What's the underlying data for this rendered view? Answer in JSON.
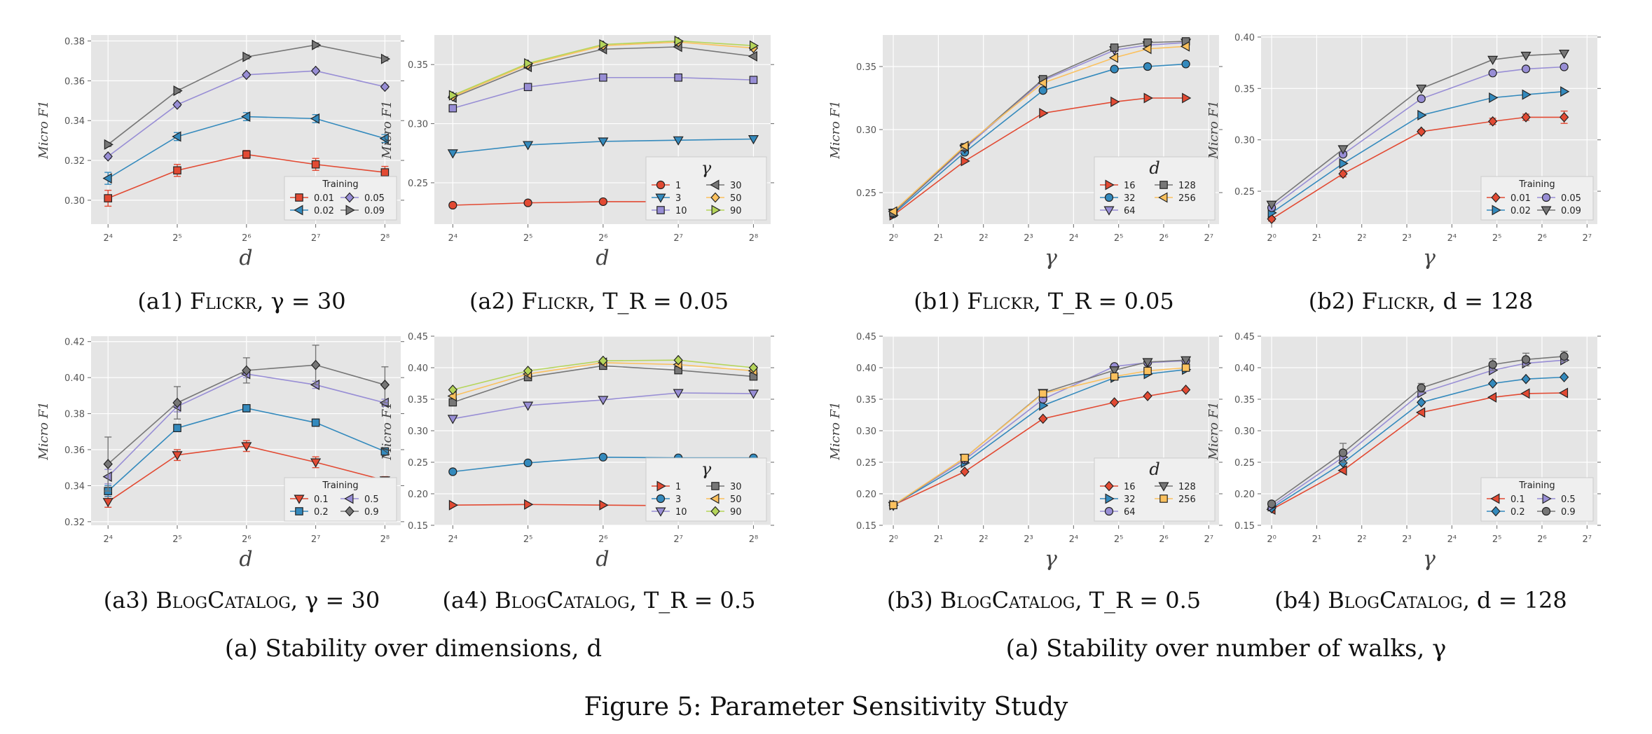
{
  "figure_caption": "Figure 5: Parameter Sensitivity Study",
  "group_captions": [
    "(a) Stability over dimensions, d",
    "(a) Stability over number of walks, γ"
  ],
  "colors": {
    "panel_bg": "#e5e5e5",
    "grid": "#ffffff",
    "series": [
      "#e24a33",
      "#348abd",
      "#988ed5",
      "#777777",
      "#fbc15e",
      "#b5d55a"
    ]
  },
  "chart_data": [
    {
      "id": "a1",
      "type": "line",
      "caption": {
        "label": "(a1)",
        "dataset": "Flickr",
        "param": "γ = 30"
      },
      "xlabel": "d",
      "ylabel": "Micro F1",
      "xscale": "log2",
      "xlim": [
        13.5,
        300
      ],
      "ylim": [
        0.288,
        0.383
      ],
      "xticks": [
        16,
        32,
        64,
        128,
        256
      ],
      "xtick_labels": [
        "2⁴",
        "2⁵",
        "2⁶",
        "2⁷",
        "2⁸"
      ],
      "yticks": [
        0.3,
        0.32,
        0.34,
        0.36,
        0.38
      ],
      "ytick_labels": [
        "0.30",
        "0.32",
        "0.34",
        "0.36",
        "0.38"
      ],
      "legend": {
        "title": "Training",
        "position": "bottom-right",
        "columns": 2
      },
      "x": [
        16,
        32,
        64,
        128,
        256
      ],
      "series": [
        {
          "name": "0.01",
          "marker": "s",
          "color": "#e24a33",
          "values": [
            0.301,
            0.315,
            0.323,
            0.318,
            0.314
          ],
          "err": [
            0.004,
            0.003,
            0.002,
            0.003,
            0.003
          ]
        },
        {
          "name": "0.02",
          "marker": "<",
          "color": "#348abd",
          "values": [
            0.311,
            0.332,
            0.342,
            0.341,
            0.331
          ],
          "err": [
            0.003,
            0.002,
            0.002,
            0.002,
            0.002
          ]
        },
        {
          "name": "0.05",
          "marker": "D",
          "color": "#988ed5",
          "values": [
            0.322,
            0.348,
            0.363,
            0.365,
            0.357
          ],
          "err": [
            0.001,
            0.001,
            0.001,
            0.001,
            0.001
          ]
        },
        {
          "name": "0.09",
          "marker": ">",
          "color": "#777777",
          "values": [
            0.328,
            0.355,
            0.372,
            0.378,
            0.371
          ],
          "err": [
            0.001,
            0.001,
            0.001,
            0.001,
            0.001
          ]
        }
      ]
    },
    {
      "id": "a2",
      "type": "line",
      "caption": {
        "label": "(a2)",
        "dataset": "Flickr",
        "param": "T_R = 0.05"
      },
      "xlabel": "d",
      "ylabel": "Micro F1",
      "xscale": "log2",
      "xlim": [
        13.5,
        300
      ],
      "ylim": [
        0.215,
        0.375
      ],
      "xticks": [
        16,
        32,
        64,
        128,
        256
      ],
      "xtick_labels": [
        "2⁴",
        "2⁵",
        "2⁶",
        "2⁷",
        "2⁸"
      ],
      "yticks": [
        0.25,
        0.3,
        0.35
      ],
      "ytick_labels": [
        "0.25",
        "0.30",
        "0.35"
      ],
      "legend": {
        "title": "γ",
        "position": "bottom-right",
        "columns": 2
      },
      "x": [
        16,
        32,
        64,
        128,
        256
      ],
      "series": [
        {
          "name": "1",
          "marker": "o",
          "color": "#e24a33",
          "values": [
            0.231,
            0.233,
            0.234,
            0.234,
            0.235
          ]
        },
        {
          "name": "3",
          "marker": "v",
          "color": "#348abd",
          "values": [
            0.275,
            0.282,
            0.285,
            0.286,
            0.287
          ]
        },
        {
          "name": "10",
          "marker": "s",
          "color": "#988ed5",
          "values": [
            0.313,
            0.331,
            0.339,
            0.339,
            0.337
          ]
        },
        {
          "name": "30",
          "marker": "<",
          "color": "#777777",
          "values": [
            0.322,
            0.348,
            0.363,
            0.365,
            0.357
          ]
        },
        {
          "name": "50",
          "marker": "D",
          "color": "#fbc15e",
          "values": [
            0.323,
            0.35,
            0.366,
            0.369,
            0.364
          ]
        },
        {
          "name": "90",
          "marker": ">",
          "color": "#b5d55a",
          "values": [
            0.324,
            0.351,
            0.367,
            0.37,
            0.366
          ]
        }
      ]
    },
    {
      "id": "b1",
      "type": "line",
      "caption": {
        "label": "(b1)",
        "dataset": "Flickr",
        "param": "T_R = 0.05"
      },
      "xlabel": "γ",
      "ylabel": "Micro F1",
      "xscale": "log2",
      "xlim": [
        0.85,
        150
      ],
      "ylim": [
        0.225,
        0.375
      ],
      "xticks": [
        1,
        2,
        4,
        8,
        16,
        32,
        64,
        128
      ],
      "xtick_labels": [
        "2⁰",
        "2¹",
        "2²",
        "2³",
        "2⁴",
        "2⁵",
        "2⁶",
        "2⁷"
      ],
      "yticks": [
        0.25,
        0.3,
        0.35
      ],
      "ytick_labels": [
        "0.25",
        "0.30",
        "0.35"
      ],
      "legend": {
        "title": "d",
        "position": "bottom-right",
        "columns": 2
      },
      "x": [
        1,
        3,
        10,
        30,
        50,
        90
      ],
      "series": [
        {
          "name": "16",
          "marker": ">",
          "color": "#e24a33",
          "values": [
            0.232,
            0.275,
            0.313,
            0.322,
            0.325,
            0.325
          ]
        },
        {
          "name": "32",
          "marker": "o",
          "color": "#348abd",
          "values": [
            0.233,
            0.282,
            0.331,
            0.348,
            0.35,
            0.352
          ]
        },
        {
          "name": "64",
          "marker": "v",
          "color": "#988ed5",
          "values": [
            0.234,
            0.285,
            0.339,
            0.363,
            0.367,
            0.369
          ]
        },
        {
          "name": "128",
          "marker": "s",
          "color": "#777777",
          "values": [
            0.234,
            0.286,
            0.34,
            0.365,
            0.369,
            0.37
          ]
        },
        {
          "name": "256",
          "marker": "<",
          "color": "#fbc15e",
          "values": [
            0.235,
            0.287,
            0.337,
            0.357,
            0.364,
            0.366
          ]
        }
      ]
    },
    {
      "id": "b2",
      "type": "line",
      "caption": {
        "label": "(b2)",
        "dataset": "Flickr",
        "param": "d = 128"
      },
      "xlabel": "γ",
      "ylabel": "Micro F1",
      "xscale": "log2",
      "xlim": [
        0.85,
        150
      ],
      "ylim": [
        0.218,
        0.402
      ],
      "xticks": [
        1,
        2,
        4,
        8,
        16,
        32,
        64,
        128
      ],
      "xtick_labels": [
        "2⁰",
        "2¹",
        "2²",
        "2³",
        "2⁴",
        "2⁵",
        "2⁶",
        "2⁷"
      ],
      "yticks": [
        0.25,
        0.3,
        0.35,
        0.4
      ],
      "ytick_labels": [
        "0.25",
        "0.30",
        "0.35",
        "0.40"
      ],
      "legend": {
        "title": "Training",
        "position": "bottom-right",
        "columns": 2
      },
      "x": [
        1,
        3,
        10,
        30,
        50,
        90
      ],
      "series": [
        {
          "name": "0.01",
          "marker": "D",
          "color": "#e24a33",
          "values": [
            0.223,
            0.267,
            0.308,
            0.318,
            0.322,
            0.322
          ],
          "err": [
            0.002,
            0.003,
            0.002,
            0.003,
            0.003,
            0.006
          ]
        },
        {
          "name": "0.02",
          "marker": ">",
          "color": "#348abd",
          "values": [
            0.229,
            0.277,
            0.324,
            0.341,
            0.344,
            0.347
          ]
        },
        {
          "name": "0.05",
          "marker": "o",
          "color": "#988ed5",
          "values": [
            0.234,
            0.286,
            0.34,
            0.365,
            0.369,
            0.371
          ]
        },
        {
          "name": "0.09",
          "marker": "v",
          "color": "#777777",
          "values": [
            0.237,
            0.291,
            0.35,
            0.378,
            0.382,
            0.384
          ]
        }
      ]
    },
    {
      "id": "a3",
      "type": "line",
      "caption": {
        "label": "(a3)",
        "dataset": "BlogCatalog",
        "param": "γ = 30"
      },
      "xlabel": "d",
      "ylabel": "Micro F1",
      "xscale": "log2",
      "xlim": [
        13.5,
        300
      ],
      "ylim": [
        0.318,
        0.423
      ],
      "xticks": [
        16,
        32,
        64,
        128,
        256
      ],
      "xtick_labels": [
        "2⁴",
        "2⁵",
        "2⁶",
        "2⁷",
        "2⁸"
      ],
      "yticks": [
        0.32,
        0.34,
        0.36,
        0.38,
        0.4,
        0.42
      ],
      "ytick_labels": [
        "0.32",
        "0.34",
        "0.36",
        "0.38",
        "0.40",
        "0.42"
      ],
      "legend": {
        "title": "Training",
        "position": "bottom-right",
        "columns": 2
      },
      "x": [
        16,
        32,
        64,
        128,
        256
      ],
      "series": [
        {
          "name": "0.1",
          "marker": "v",
          "color": "#e24a33",
          "values": [
            0.331,
            0.357,
            0.362,
            0.353,
            0.343
          ],
          "err": [
            0.003,
            0.003,
            0.003,
            0.003,
            0.002
          ]
        },
        {
          "name": "0.2",
          "marker": "s",
          "color": "#348abd",
          "values": [
            0.337,
            0.372,
            0.383,
            0.375,
            0.359
          ],
          "err": [
            0.003,
            0.002,
            0.002,
            0.002,
            0.002
          ]
        },
        {
          "name": "0.5",
          "marker": "<",
          "color": "#988ed5",
          "values": [
            0.345,
            0.384,
            0.402,
            0.396,
            0.386
          ],
          "err": [
            0.004,
            0.003,
            0.002,
            0.002,
            0.002
          ]
        },
        {
          "name": "0.9",
          "marker": "D",
          "color": "#777777",
          "values": [
            0.352,
            0.386,
            0.404,
            0.407,
            0.396
          ],
          "err": [
            0.015,
            0.009,
            0.007,
            0.011,
            0.01
          ]
        }
      ]
    },
    {
      "id": "a4",
      "type": "line",
      "caption": {
        "label": "(a4)",
        "dataset": "BlogCatalog",
        "param": "T_R = 0.5"
      },
      "xlabel": "d",
      "ylabel": "Micro F1",
      "xscale": "log2",
      "xlim": [
        13.5,
        300
      ],
      "ylim": [
        0.15,
        0.45
      ],
      "xticks": [
        16,
        32,
        64,
        128,
        256
      ],
      "xtick_labels": [
        "2⁴",
        "2⁵",
        "2⁶",
        "2⁷",
        "2⁸"
      ],
      "yticks": [
        0.15,
        0.2,
        0.25,
        0.3,
        0.35,
        0.4,
        0.45
      ],
      "ytick_labels": [
        "0.15",
        "0.20",
        "0.25",
        "0.30",
        "0.35",
        "0.40",
        "0.45"
      ],
      "legend": {
        "title": "γ",
        "position": "bottom-right",
        "columns": 2
      },
      "x": [
        16,
        32,
        64,
        128,
        256
      ],
      "series": [
        {
          "name": "1",
          "marker": ">",
          "color": "#e24a33",
          "values": [
            0.182,
            0.183,
            0.182,
            0.181,
            0.182
          ]
        },
        {
          "name": "3",
          "marker": "o",
          "color": "#348abd",
          "values": [
            0.235,
            0.249,
            0.258,
            0.257,
            0.257
          ]
        },
        {
          "name": "10",
          "marker": "v",
          "color": "#988ed5",
          "values": [
            0.319,
            0.34,
            0.349,
            0.36,
            0.359
          ]
        },
        {
          "name": "30",
          "marker": "s",
          "color": "#777777",
          "values": [
            0.345,
            0.385,
            0.403,
            0.396,
            0.386
          ]
        },
        {
          "name": "50",
          "marker": "<",
          "color": "#fbc15e",
          "values": [
            0.355,
            0.39,
            0.408,
            0.405,
            0.395
          ]
        },
        {
          "name": "90",
          "marker": "D",
          "color": "#b5d55a",
          "values": [
            0.365,
            0.395,
            0.411,
            0.412,
            0.4
          ]
        }
      ]
    },
    {
      "id": "b3",
      "type": "line",
      "caption": {
        "label": "(b3)",
        "dataset": "BlogCatalog",
        "param": "T_R = 0.5"
      },
      "xlabel": "γ",
      "ylabel": "Micro F1",
      "xscale": "log2",
      "xlim": [
        0.85,
        150
      ],
      "ylim": [
        0.15,
        0.45
      ],
      "xticks": [
        1,
        2,
        4,
        8,
        16,
        32,
        64,
        128
      ],
      "xtick_labels": [
        "2⁰",
        "2¹",
        "2²",
        "2³",
        "2⁴",
        "2⁵",
        "2⁶",
        "2⁷"
      ],
      "yticks": [
        0.15,
        0.2,
        0.25,
        0.3,
        0.35,
        0.4,
        0.45
      ],
      "ytick_labels": [
        "0.15",
        "0.20",
        "0.25",
        "0.30",
        "0.35",
        "0.40",
        "0.45"
      ],
      "legend": {
        "title": "d",
        "position": "bottom-right",
        "columns": 2
      },
      "x": [
        1,
        3,
        10,
        30,
        50,
        90
      ],
      "series": [
        {
          "name": "16",
          "marker": "D",
          "color": "#e24a33",
          "values": [
            0.182,
            0.235,
            0.319,
            0.345,
            0.355,
            0.365
          ]
        },
        {
          "name": "32",
          "marker": ">",
          "color": "#348abd",
          "values": [
            0.182,
            0.249,
            0.34,
            0.384,
            0.39,
            0.397
          ]
        },
        {
          "name": "64",
          "marker": "o",
          "color": "#988ed5",
          "values": [
            0.182,
            0.254,
            0.35,
            0.402,
            0.408,
            0.411
          ]
        },
        {
          "name": "128",
          "marker": "v",
          "color": "#777777",
          "values": [
            0.181,
            0.257,
            0.36,
            0.396,
            0.409,
            0.412
          ]
        },
        {
          "name": "256",
          "marker": "s",
          "color": "#fbc15e",
          "values": [
            0.182,
            0.257,
            0.359,
            0.386,
            0.395,
            0.4
          ]
        }
      ]
    },
    {
      "id": "b4",
      "type": "line",
      "caption": {
        "label": "(b4)",
        "dataset": "BlogCatalog",
        "param": "d = 128"
      },
      "xlabel": "γ",
      "ylabel": "Micro F1",
      "xscale": "log2",
      "xlim": [
        0.85,
        150
      ],
      "ylim": [
        0.15,
        0.45
      ],
      "xticks": [
        1,
        2,
        4,
        8,
        16,
        32,
        64,
        128
      ],
      "xtick_labels": [
        "2⁰",
        "2¹",
        "2²",
        "2³",
        "2⁴",
        "2⁵",
        "2⁶",
        "2⁷"
      ],
      "yticks": [
        0.15,
        0.2,
        0.25,
        0.3,
        0.35,
        0.4,
        0.45
      ],
      "ytick_labels": [
        "0.15",
        "0.20",
        "0.25",
        "0.30",
        "0.35",
        "0.40",
        "0.45"
      ],
      "legend": {
        "title": "Training",
        "position": "bottom-right",
        "columns": 2
      },
      "x": [
        1,
        3,
        10,
        30,
        50,
        90
      ],
      "series": [
        {
          "name": "0.1",
          "marker": "<",
          "color": "#e24a33",
          "values": [
            0.175,
            0.237,
            0.329,
            0.353,
            0.359,
            0.36
          ]
        },
        {
          "name": "0.2",
          "marker": "D",
          "color": "#348abd",
          "values": [
            0.177,
            0.249,
            0.345,
            0.375,
            0.382,
            0.385
          ]
        },
        {
          "name": "0.5",
          "marker": ">",
          "color": "#988ed5",
          "values": [
            0.18,
            0.258,
            0.36,
            0.396,
            0.407,
            0.412
          ]
        },
        {
          "name": "0.9",
          "marker": "o",
          "color": "#777777",
          "values": [
            0.184,
            0.265,
            0.368,
            0.405,
            0.413,
            0.418
          ],
          "err": [
            0.003,
            0.015,
            0.007,
            0.009,
            0.01,
            0.008
          ]
        }
      ]
    }
  ]
}
